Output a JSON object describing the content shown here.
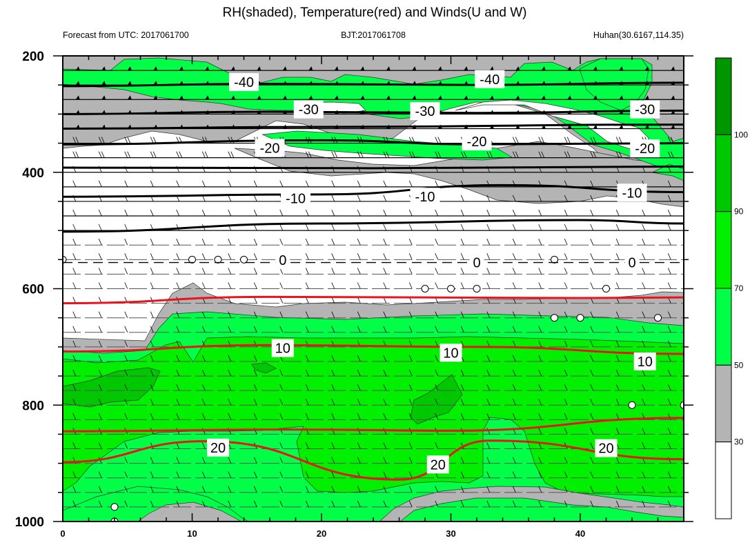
{
  "title": "RH(shaded), Temperature(red) and Winds(U and W)",
  "subtitle_left": "Forecast from UTC: 2017061700",
  "subtitle_center": "BJT:2017061708",
  "subtitle_right": "Huhan(30.6167,114.35)",
  "chart_data": {
    "type": "heatmap",
    "x_ticks": [
      "0",
      "10",
      "20",
      "30",
      "40"
    ],
    "xlim": [
      0,
      48
    ],
    "y_ticks": [
      "200",
      "400",
      "600",
      "800",
      "1000"
    ],
    "ylim": [
      1000,
      200
    ],
    "y_axis": "pressure (top 200, bottom 1000, linear)",
    "colorbar": {
      "levels": [
        "30",
        "50",
        "70",
        "90",
        "100"
      ],
      "colors": [
        "#ffffff",
        "#b4b4b4",
        "#00ff46",
        "#00f000",
        "#00c800",
        "#009600"
      ]
    },
    "temperature_contours": [
      {
        "label": "-40",
        "color": "black",
        "level_hpa": [
          [
            0,
            252
          ],
          [
            16,
            248
          ],
          [
            32,
            250
          ],
          [
            48,
            246
          ]
        ]
      },
      {
        "label": "-30",
        "color": "black",
        "level_hpa": [
          [
            0,
            300
          ],
          [
            16,
            296
          ],
          [
            32,
            298
          ],
          [
            48,
            294
          ]
        ]
      },
      {
        "label": "-20",
        "color": "black",
        "level_hpa": [
          [
            0,
            352
          ],
          [
            20,
            345
          ],
          [
            32,
            352
          ],
          [
            48,
            350
          ]
        ]
      },
      {
        "label": "-10",
        "color": "black",
        "level_hpa": [
          [
            0,
            442
          ],
          [
            20,
            438
          ],
          [
            34,
            422
          ],
          [
            48,
            434
          ]
        ]
      },
      {
        "label": "0",
        "color": "black",
        "level_hpa": [
          [
            0,
            555
          ],
          [
            48,
            555
          ]
        ]
      },
      {
        "label": "10",
        "color": "red",
        "level_hpa": [
          [
            0,
            708
          ],
          [
            16,
            697
          ],
          [
            32,
            700
          ],
          [
            48,
            712
          ]
        ]
      },
      {
        "label": "20",
        "color": "red",
        "level_hpa": [
          [
            0,
            898
          ],
          [
            11,
            862
          ],
          [
            26,
            928
          ],
          [
            33,
            861
          ],
          [
            48,
            893
          ]
        ]
      }
    ],
    "other_contours": [
      {
        "color": "black",
        "level_hpa": [
          [
            0,
            325
          ],
          [
            20,
            322
          ],
          [
            48,
            318
          ]
        ]
      },
      {
        "color": "black",
        "level_hpa": [
          [
            0,
            392
          ],
          [
            24,
            393
          ],
          [
            48,
            390
          ]
        ]
      },
      {
        "color": "black",
        "level_hpa": [
          [
            0,
            502
          ],
          [
            20,
            488
          ],
          [
            40,
            482
          ],
          [
            48,
            488
          ]
        ]
      },
      {
        "color": "red",
        "level_hpa": [
          [
            0,
            625
          ],
          [
            16,
            614
          ],
          [
            40,
            616
          ],
          [
            48,
            615
          ]
        ]
      },
      {
        "color": "red",
        "level_hpa": [
          [
            0,
            845
          ],
          [
            18,
            842
          ],
          [
            30,
            844
          ],
          [
            48,
            822
          ]
        ]
      }
    ],
    "contour_labels": [
      {
        "text": "-40",
        "x": 14,
        "p": 245
      },
      {
        "text": "-40",
        "x": 33,
        "p": 240
      },
      {
        "text": "-30",
        "x": 19,
        "p": 292
      },
      {
        "text": "-30",
        "x": 28,
        "p": 295
      },
      {
        "text": "-30",
        "x": 45,
        "p": 292
      },
      {
        "text": "-20",
        "x": 16,
        "p": 358
      },
      {
        "text": "-20",
        "x": 32,
        "p": 347
      },
      {
        "text": "-20",
        "x": 45,
        "p": 359
      },
      {
        "text": "-10",
        "x": 18,
        "p": 445
      },
      {
        "text": "-10",
        "x": 28,
        "p": 442
      },
      {
        "text": "-10",
        "x": 44,
        "p": 435
      },
      {
        "text": "0",
        "x": 17,
        "p": 551
      },
      {
        "text": "0",
        "x": 32,
        "p": 555
      },
      {
        "text": "0",
        "x": 44,
        "p": 555
      },
      {
        "text": "10",
        "x": 17,
        "p": 702
      },
      {
        "text": "10",
        "x": 30,
        "p": 710
      },
      {
        "text": "10",
        "x": 45,
        "p": 725
      },
      {
        "text": "20",
        "x": 12,
        "p": 873
      },
      {
        "text": "20",
        "x": 29,
        "p": 902
      },
      {
        "text": "20",
        "x": 42,
        "p": 874
      }
    ]
  }
}
